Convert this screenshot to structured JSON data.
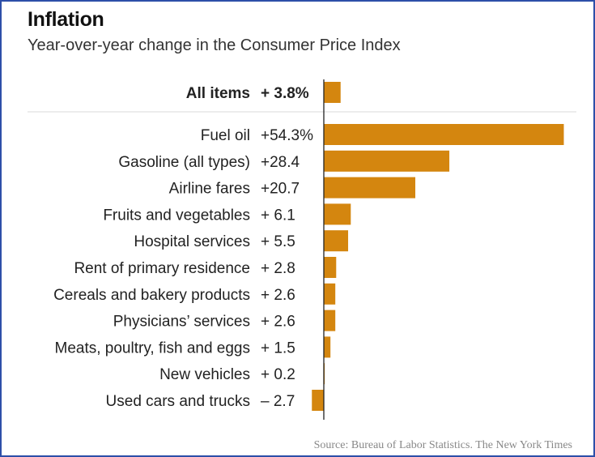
{
  "title": "Inflation",
  "subtitle": "Year-over-year change in the Consumer Price Index",
  "source": "Source: Bureau of Labor Statistics. The New York Times",
  "bar_color": "#d4860f",
  "chart_data": {
    "type": "bar",
    "orientation": "horizontal",
    "unit": "%",
    "summary": {
      "category": "All items",
      "value": 3.8,
      "label": "+ 3.8%"
    },
    "categories": [
      "Fuel oil",
      "Gasoline (all types)",
      "Airline fares",
      "Fruits and vegetables",
      "Hospital services",
      "Rent of primary residence",
      "Cereals and bakery products",
      "Physicians’ services",
      "Meats, poultry, fish and eggs",
      "New vehicles",
      "Used cars and trucks"
    ],
    "values": [
      54.3,
      28.4,
      20.7,
      6.1,
      5.5,
      2.8,
      2.6,
      2.6,
      1.5,
      0.2,
      -2.7
    ],
    "value_labels": [
      "+54.3%",
      "+28.4",
      "+20.7",
      "+ 6.1",
      "+ 5.5",
      "+ 2.8",
      "+ 2.6",
      "+ 2.6",
      "+ 1.5",
      "+ 0.2",
      "– 2.7"
    ]
  }
}
